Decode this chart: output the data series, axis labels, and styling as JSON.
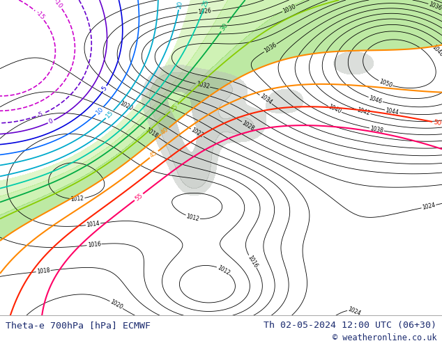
{
  "title_left": "Theta-e 700hPa [hPa] ECMWF",
  "title_right": "Th 02-05-2024 12:00 UTC (06+30)",
  "copyright": "© weatheronline.co.uk",
  "fig_width": 6.34,
  "fig_height": 4.9,
  "dpi": 100,
  "title_color": "#1a2a6e",
  "map_bg": "#e8e8e8",
  "footer_bg": "#ffffff"
}
